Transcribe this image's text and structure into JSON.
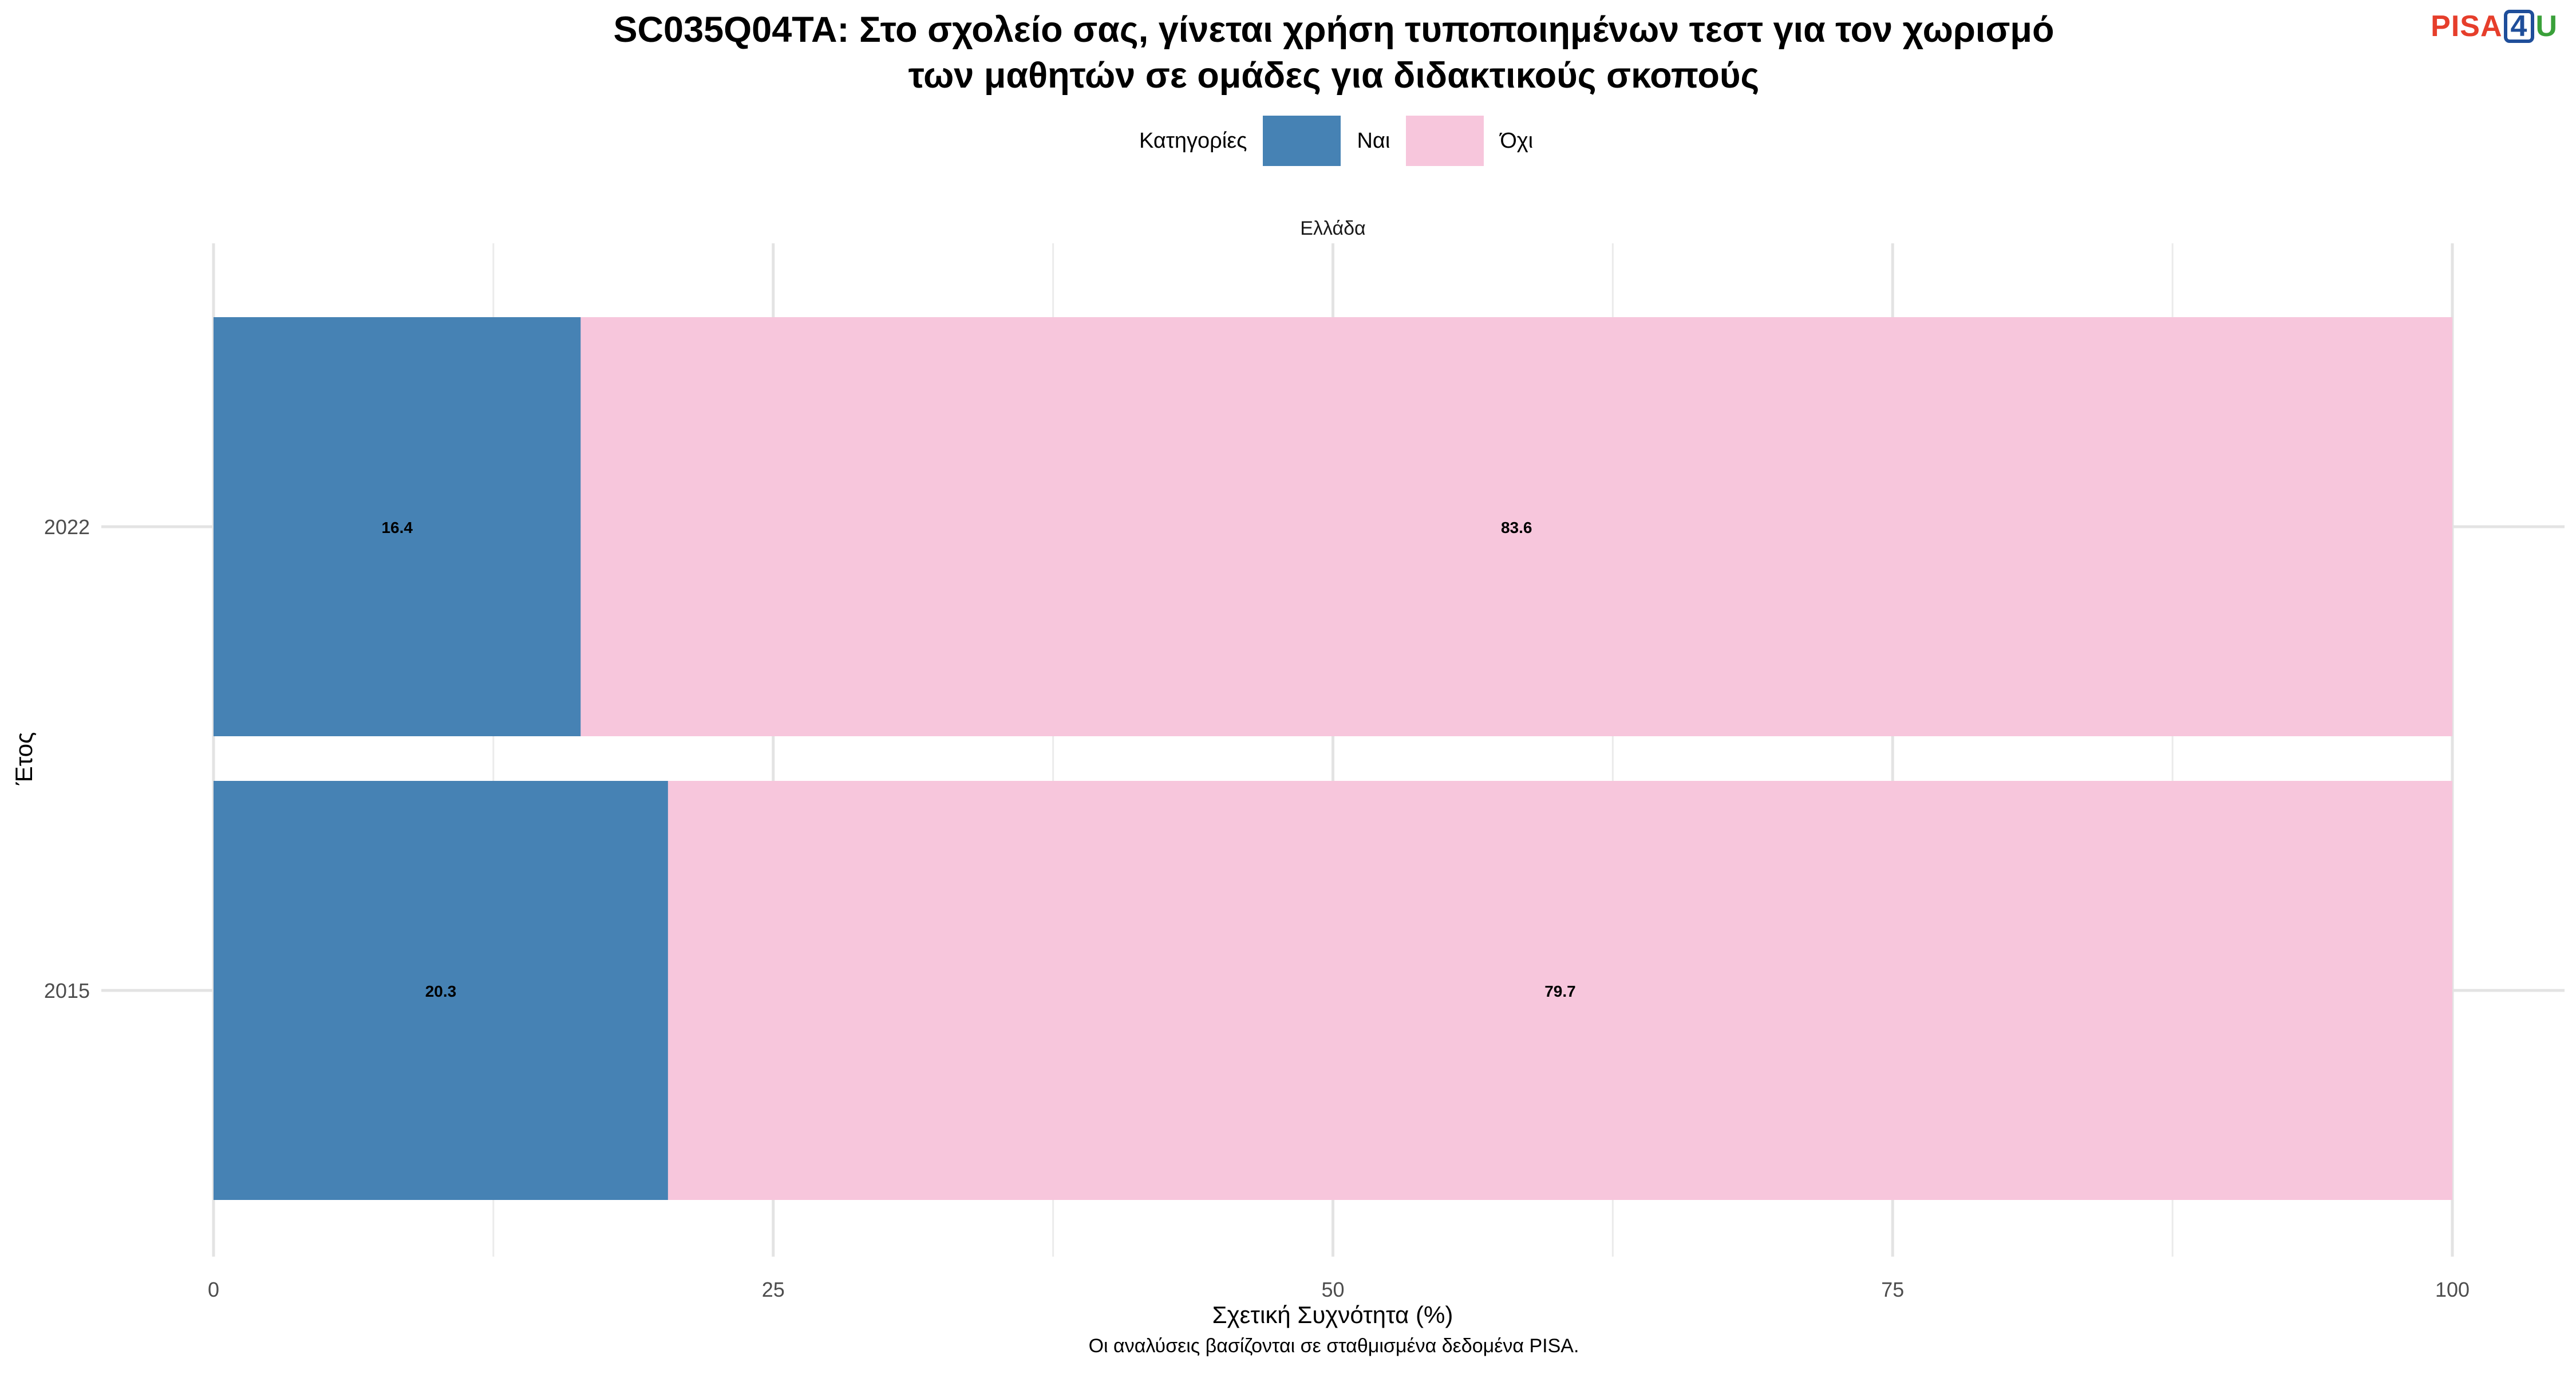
{
  "title_lines": [
    "SC035Q04TA: Στο σχολείο σας, γίνεται χρήση τυποποιημένων τεστ για τον χωρισμό",
    "των μαθητών σε ομάδες για διδακτικούς σκοπούς"
  ],
  "logo": {
    "text_a": "PISA",
    "text_b": "4",
    "text_c": "U",
    "colors": [
      "#e63e2b",
      "#1f4e9a",
      "#3aa03a"
    ]
  },
  "legend": {
    "title": "Κατηγορίες"
  },
  "caption": "Οι αναλύσεις βασίζονται σε σταθμισμένα δεδομένα PISA.",
  "chart_data": {
    "type": "bar",
    "orientation": "horizontal",
    "stacked": true,
    "facet_label": "Ελλάδα",
    "categories": [
      "2022",
      "2015"
    ],
    "series": [
      {
        "name": "Ναι",
        "color": "#4682b4",
        "values": [
          16.4,
          20.3
        ]
      },
      {
        "name": "Όχι",
        "color": "#f7c6dc",
        "values": [
          83.6,
          79.7
        ]
      }
    ],
    "xlabel": "Σχετική Συχνότητα (%)",
    "ylabel": "Έτος",
    "xlim": [
      0,
      100
    ],
    "xticks": [
      0,
      25,
      50,
      75,
      100
    ],
    "grid": true,
    "legend_position": "top"
  }
}
